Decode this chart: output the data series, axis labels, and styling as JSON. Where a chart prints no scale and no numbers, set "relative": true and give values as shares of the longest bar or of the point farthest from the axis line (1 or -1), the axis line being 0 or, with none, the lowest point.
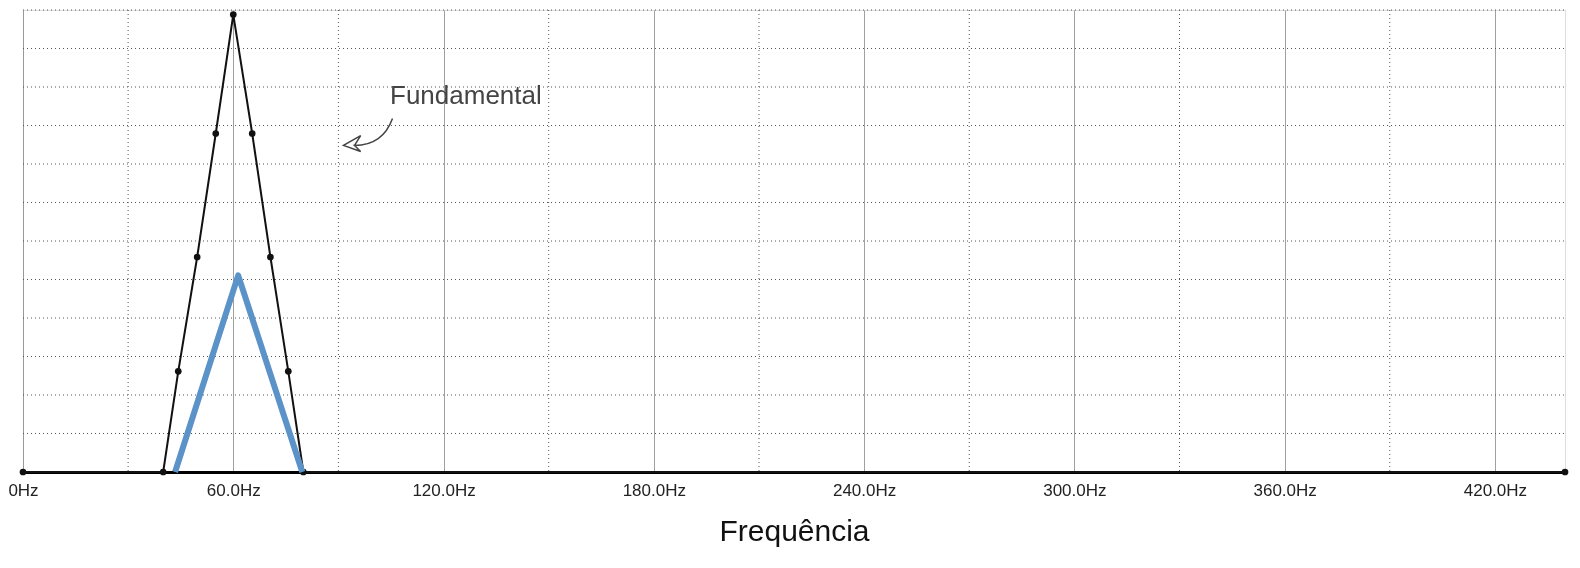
{
  "chart_data": {
    "type": "line",
    "relative": true,
    "xlabel": "Frequência",
    "annotations": [
      "Fundamental"
    ],
    "xlim": [
      0,
      440
    ],
    "xticks": [
      {
        "value": 0,
        "label": "0Hz"
      },
      {
        "value": 60,
        "label": "60.0Hz"
      },
      {
        "value": 120,
        "label": "120.0Hz"
      },
      {
        "value": 180,
        "label": "180.0Hz"
      },
      {
        "value": 240,
        "label": "240.0Hz"
      },
      {
        "value": 300,
        "label": "300.0Hz"
      },
      {
        "value": 360,
        "label": "360.0Hz"
      },
      {
        "value": 420,
        "label": "420.0Hz"
      }
    ],
    "grid": true,
    "series": [
      {
        "color": "#111111",
        "marker": "circle",
        "x": [
          0,
          40,
          44.3,
          49.7,
          55,
          60,
          65.4,
          70.6,
          75.7,
          80,
          440
        ],
        "values": [
          0,
          0,
          0.22,
          0.47,
          0.74,
          1,
          0.74,
          0.47,
          0.22,
          0,
          0
        ]
      },
      {
        "color": "#5b93c8",
        "marker": "none",
        "x": [
          43.4,
          61.4,
          79.7
        ],
        "values": [
          0,
          0.43,
          0
        ]
      }
    ]
  }
}
